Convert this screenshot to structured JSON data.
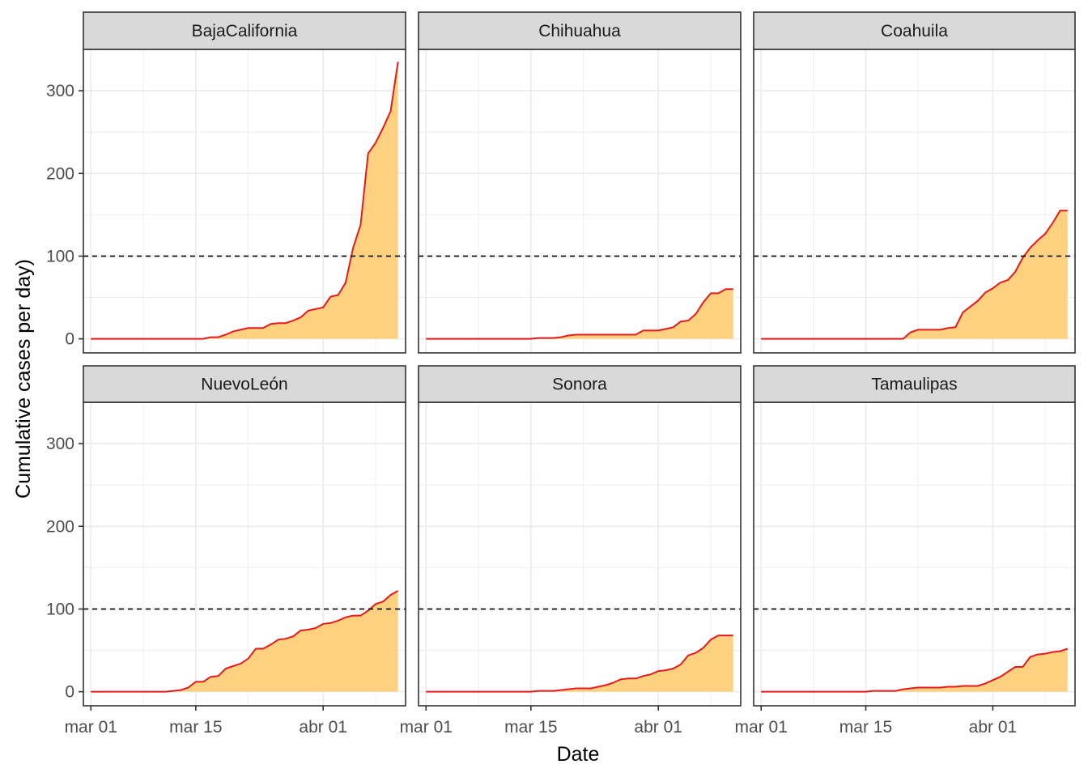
{
  "chart_data": {
    "type": "area",
    "layout": "facet-grid 2x3",
    "xlabel": "Date",
    "ylabel": "Cumulative cases per day)",
    "x_ticks": [
      "mar 01",
      "mar 15",
      "abr 01"
    ],
    "y_ticks": [
      0,
      100,
      200,
      300
    ],
    "xlim": [
      "2020-02-29",
      "2020-04-12"
    ],
    "ylim": [
      -17,
      350
    ],
    "reference_line": {
      "y": 100,
      "style": "dashed",
      "color": "#000000"
    },
    "grid": true,
    "colors": {
      "fill": "#FED180",
      "line": "#E41A1C",
      "strip": "#D9D9D9",
      "grid": "#EBEBEB",
      "border": "#333333"
    },
    "dates": [
      "2020-03-01",
      "2020-03-02",
      "2020-03-03",
      "2020-03-04",
      "2020-03-05",
      "2020-03-06",
      "2020-03-07",
      "2020-03-08",
      "2020-03-09",
      "2020-03-10",
      "2020-03-11",
      "2020-03-12",
      "2020-03-13",
      "2020-03-14",
      "2020-03-15",
      "2020-03-16",
      "2020-03-17",
      "2020-03-18",
      "2020-03-19",
      "2020-03-20",
      "2020-03-21",
      "2020-03-22",
      "2020-03-23",
      "2020-03-24",
      "2020-03-25",
      "2020-03-26",
      "2020-03-27",
      "2020-03-28",
      "2020-03-29",
      "2020-03-30",
      "2020-03-31",
      "2020-04-01",
      "2020-04-02",
      "2020-04-03",
      "2020-04-04",
      "2020-04-05",
      "2020-04-06",
      "2020-04-07",
      "2020-04-08",
      "2020-04-09",
      "2020-04-10",
      "2020-04-11"
    ],
    "panels": [
      {
        "name": "BajaCalifornia",
        "values": [
          0,
          0,
          0,
          0,
          0,
          0,
          0,
          0,
          0,
          0,
          0,
          0,
          0,
          0,
          0,
          0,
          2,
          2,
          5,
          9,
          11,
          13,
          13,
          13,
          18,
          19,
          19,
          22,
          26,
          34,
          36,
          38,
          51,
          53,
          68,
          110,
          138,
          224,
          237,
          255,
          275,
          335
        ]
      },
      {
        "name": "Chihuahua",
        "values": [
          0,
          0,
          0,
          0,
          0,
          0,
          0,
          0,
          0,
          0,
          0,
          0,
          0,
          0,
          0,
          1,
          1,
          1,
          2,
          4,
          5,
          5,
          5,
          5,
          5,
          5,
          5,
          5,
          5,
          10,
          10,
          10,
          12,
          14,
          21,
          22,
          30,
          44,
          55,
          55,
          60,
          60
        ]
      },
      {
        "name": "Coahuila",
        "values": [
          0,
          0,
          0,
          0,
          0,
          0,
          0,
          0,
          0,
          0,
          0,
          0,
          0,
          0,
          0,
          0,
          0,
          0,
          0,
          0,
          8,
          11,
          11,
          11,
          11,
          13,
          14,
          32,
          39,
          46,
          56,
          61,
          68,
          71,
          81,
          98,
          110,
          119,
          127,
          140,
          155,
          155
        ]
      },
      {
        "name": "NuevoLeón",
        "values": [
          0,
          0,
          0,
          0,
          0,
          0,
          0,
          0,
          0,
          0,
          0,
          1,
          2,
          5,
          12,
          12,
          18,
          19,
          28,
          31,
          34,
          40,
          52,
          52,
          57,
          63,
          64,
          67,
          74,
          75,
          77,
          82,
          83,
          86,
          90,
          92,
          92,
          98,
          106,
          109,
          117,
          122
        ]
      },
      {
        "name": "Sonora",
        "values": [
          0,
          0,
          0,
          0,
          0,
          0,
          0,
          0,
          0,
          0,
          0,
          0,
          0,
          0,
          0,
          1,
          1,
          1,
          2,
          3,
          4,
          4,
          4,
          6,
          8,
          11,
          15,
          16,
          16,
          19,
          21,
          25,
          26,
          28,
          33,
          44,
          47,
          53,
          63,
          68,
          68,
          68
        ]
      },
      {
        "name": "Tamaulipas",
        "values": [
          0,
          0,
          0,
          0,
          0,
          0,
          0,
          0,
          0,
          0,
          0,
          0,
          0,
          0,
          0,
          1,
          1,
          1,
          1,
          3,
          4,
          5,
          5,
          5,
          5,
          6,
          6,
          7,
          7,
          7,
          10,
          14,
          18,
          24,
          30,
          30,
          42,
          45,
          46,
          48,
          49,
          52
        ]
      }
    ]
  }
}
